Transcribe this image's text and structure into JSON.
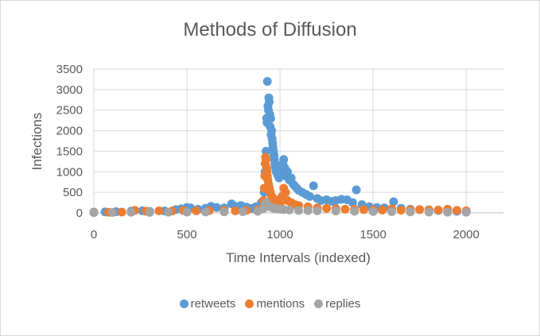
{
  "chart_data": {
    "type": "scatter",
    "title": "Methods of Diffusion",
    "xlabel": "Time Intervals (indexed)",
    "ylabel": "Infections",
    "xlim": [
      0,
      2200
    ],
    "ylim": [
      0,
      3500
    ],
    "xticks": [
      "0",
      "500",
      "1000",
      "1500",
      "2000"
    ],
    "yticks": [
      "0",
      "500",
      "1000",
      "1500",
      "2000",
      "2500",
      "3000",
      "3500"
    ],
    "grid": true,
    "legend_position": "bottom",
    "colors": {
      "retweets": "#5b9bd5",
      "mentions": "#ed7d31",
      "replies": "#a5a5a5"
    },
    "series": [
      {
        "name": "retweets",
        "points": [
          [
            0,
            20
          ],
          [
            60,
            25
          ],
          [
            120,
            30
          ],
          [
            200,
            40
          ],
          [
            260,
            50
          ],
          [
            300,
            35
          ],
          [
            380,
            45
          ],
          [
            440,
            80
          ],
          [
            470,
            100
          ],
          [
            500,
            130
          ],
          [
            520,
            120
          ],
          [
            560,
            90
          ],
          [
            600,
            110
          ],
          [
            630,
            160
          ],
          [
            660,
            130
          ],
          [
            700,
            120
          ],
          [
            740,
            220
          ],
          [
            760,
            160
          ],
          [
            790,
            180
          ],
          [
            820,
            140
          ],
          [
            850,
            110
          ],
          [
            870,
            150
          ],
          [
            900,
            250
          ],
          [
            915,
            500
          ],
          [
            920,
            1000
          ],
          [
            925,
            1500
          ],
          [
            928,
            2300
          ],
          [
            930,
            2200
          ],
          [
            932,
            3200
          ],
          [
            935,
            2600
          ],
          [
            938,
            2500
          ],
          [
            940,
            2800
          ],
          [
            942,
            2700
          ],
          [
            945,
            2400
          ],
          [
            947,
            2100
          ],
          [
            950,
            2300
          ],
          [
            952,
            1900
          ],
          [
            955,
            2000
          ],
          [
            958,
            1800
          ],
          [
            960,
            1700
          ],
          [
            962,
            1600
          ],
          [
            965,
            1500
          ],
          [
            968,
            1400
          ],
          [
            970,
            1300
          ],
          [
            972,
            1200
          ],
          [
            975,
            1100
          ],
          [
            978,
            1050
          ],
          [
            980,
            1000
          ],
          [
            985,
            950
          ],
          [
            990,
            900
          ],
          [
            995,
            850
          ],
          [
            1000,
            1100
          ],
          [
            1005,
            1000
          ],
          [
            1010,
            950
          ],
          [
            1015,
            1200
          ],
          [
            1020,
            1300
          ],
          [
            1025,
            1100
          ],
          [
            1030,
            900
          ],
          [
            1040,
            1000
          ],
          [
            1050,
            800
          ],
          [
            1060,
            850
          ],
          [
            1070,
            700
          ],
          [
            1080,
            650
          ],
          [
            1090,
            600
          ],
          [
            1100,
            550
          ],
          [
            1120,
            500
          ],
          [
            1140,
            450
          ],
          [
            1160,
            400
          ],
          [
            1180,
            660
          ],
          [
            1200,
            350
          ],
          [
            1220,
            300
          ],
          [
            1250,
            320
          ],
          [
            1280,
            280
          ],
          [
            1300,
            300
          ],
          [
            1330,
            330
          ],
          [
            1360,
            320
          ],
          [
            1390,
            250
          ],
          [
            1410,
            560
          ],
          [
            1440,
            200
          ],
          [
            1480,
            150
          ],
          [
            1520,
            130
          ],
          [
            1560,
            120
          ],
          [
            1610,
            270
          ],
          [
            1650,
            110
          ],
          [
            1700,
            90
          ],
          [
            1750,
            80
          ],
          [
            1800,
            70
          ],
          [
            1850,
            60
          ],
          [
            1900,
            50
          ],
          [
            1950,
            40
          ],
          [
            2000,
            30
          ]
        ]
      },
      {
        "name": "mentions",
        "points": [
          [
            0,
            10
          ],
          [
            80,
            15
          ],
          [
            150,
            20
          ],
          [
            220,
            60
          ],
          [
            280,
            40
          ],
          [
            350,
            50
          ],
          [
            420,
            45
          ],
          [
            480,
            60
          ],
          [
            550,
            50
          ],
          [
            620,
            55
          ],
          [
            700,
            60
          ],
          [
            760,
            50
          ],
          [
            820,
            60
          ],
          [
            880,
            70
          ],
          [
            900,
            100
          ],
          [
            910,
            300
          ],
          [
            915,
            600
          ],
          [
            918,
            900
          ],
          [
            920,
            1200
          ],
          [
            922,
            1350
          ],
          [
            925,
            1300
          ],
          [
            928,
            1100
          ],
          [
            930,
            1000
          ],
          [
            932,
            900
          ],
          [
            935,
            800
          ],
          [
            938,
            700
          ],
          [
            940,
            650
          ],
          [
            942,
            600
          ],
          [
            945,
            550
          ],
          [
            948,
            500
          ],
          [
            950,
            450
          ],
          [
            955,
            400
          ],
          [
            960,
            380
          ],
          [
            965,
            350
          ],
          [
            970,
            320
          ],
          [
            975,
            300
          ],
          [
            980,
            280
          ],
          [
            985,
            260
          ],
          [
            990,
            240
          ],
          [
            995,
            220
          ],
          [
            1000,
            200
          ],
          [
            1010,
            400
          ],
          [
            1020,
            600
          ],
          [
            1030,
            500
          ],
          [
            1040,
            300
          ],
          [
            1060,
            250
          ],
          [
            1080,
            200
          ],
          [
            1100,
            180
          ],
          [
            1150,
            150
          ],
          [
            1200,
            120
          ],
          [
            1250,
            110
          ],
          [
            1300,
            100
          ],
          [
            1350,
            90
          ],
          [
            1400,
            85
          ],
          [
            1450,
            80
          ],
          [
            1500,
            75
          ],
          [
            1550,
            70
          ],
          [
            1600,
            100
          ],
          [
            1650,
            65
          ],
          [
            1700,
            70
          ],
          [
            1750,
            80
          ],
          [
            1800,
            75
          ],
          [
            1850,
            70
          ],
          [
            1900,
            90
          ],
          [
            1950,
            60
          ],
          [
            2000,
            50
          ]
        ]
      },
      {
        "name": "replies",
        "points": [
          [
            0,
            5
          ],
          [
            100,
            10
          ],
          [
            200,
            15
          ],
          [
            300,
            12
          ],
          [
            400,
            18
          ],
          [
            500,
            20
          ],
          [
            600,
            22
          ],
          [
            700,
            25
          ],
          [
            800,
            30
          ],
          [
            880,
            40
          ],
          [
            910,
            100
          ],
          [
            920,
            200
          ],
          [
            925,
            250
          ],
          [
            930,
            220
          ],
          [
            935,
            180
          ],
          [
            940,
            160
          ],
          [
            950,
            140
          ],
          [
            960,
            120
          ],
          [
            970,
            110
          ],
          [
            980,
            100
          ],
          [
            1000,
            90
          ],
          [
            1020,
            80
          ],
          [
            1050,
            70
          ],
          [
            1100,
            60
          ],
          [
            1150,
            55
          ],
          [
            1200,
            50
          ],
          [
            1300,
            45
          ],
          [
            1400,
            40
          ],
          [
            1500,
            35
          ],
          [
            1600,
            30
          ],
          [
            1700,
            25
          ],
          [
            1800,
            20
          ],
          [
            1900,
            18
          ],
          [
            2000,
            15
          ]
        ]
      }
    ]
  }
}
